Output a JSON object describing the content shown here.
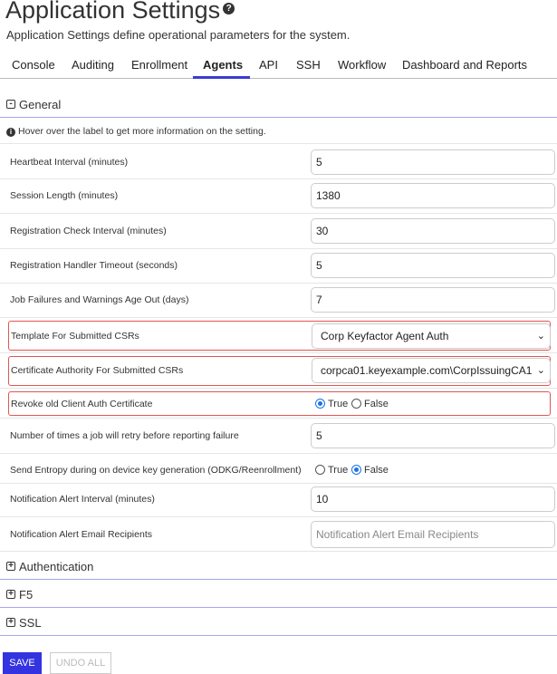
{
  "header": {
    "title": "Application Settings",
    "help_icon": "question-circle-icon",
    "subtitle": "Application Settings define operational parameters for the system."
  },
  "tabs": [
    {
      "label": "Console"
    },
    {
      "label": "Auditing"
    },
    {
      "label": "Enrollment"
    },
    {
      "label": "Agents",
      "active": true
    },
    {
      "label": "API"
    },
    {
      "label": "SSH"
    },
    {
      "label": "Workflow"
    },
    {
      "label": "Dashboard and Reports"
    }
  ],
  "general": {
    "title": "General",
    "toggle": "-",
    "info": "Hover over the label to get more information on the setting.",
    "settings": {
      "heartbeat": {
        "label": "Heartbeat Interval (minutes)",
        "value": "5"
      },
      "session": {
        "label": "Session Length (minutes)",
        "value": "1380"
      },
      "regcheck": {
        "label": "Registration Check Interval (minutes)",
        "value": "30"
      },
      "reghandler": {
        "label": "Registration Handler Timeout (seconds)",
        "value": "5"
      },
      "jobfail": {
        "label": "Job Failures and Warnings Age Out (days)",
        "value": "7"
      },
      "template": {
        "label": "Template For Submitted CSRs",
        "value": "Corp Keyfactor Agent Auth"
      },
      "ca": {
        "label": "Certificate Authority For Submitted CSRs",
        "value": "corpca01.keyexample.com\\CorpIssuingCA1"
      },
      "revoke": {
        "label": "Revoke old Client Auth Certificate",
        "true_label": "True",
        "false_label": "False",
        "value": "True"
      },
      "retries": {
        "label": "Number of times a job will retry before reporting failure",
        "value": "5"
      },
      "entropy": {
        "label": "Send Entropy during on device key generation (ODKG/Reenrollment)",
        "true_label": "True",
        "false_label": "False",
        "value": "False"
      },
      "notif_interval": {
        "label": "Notification Alert Interval (minutes)",
        "value": "10"
      },
      "notif_recipients": {
        "label": "Notification Alert Email Recipients",
        "value": "",
        "placeholder": "Notification Alert Email Recipients"
      }
    }
  },
  "sections": [
    {
      "title": "Authentication",
      "toggle": "+"
    },
    {
      "title": "F5",
      "toggle": "+"
    },
    {
      "title": "SSL",
      "toggle": "+"
    }
  ],
  "actions": {
    "save": "SAVE",
    "undo": "UNDO ALL"
  },
  "colors": {
    "accent": "#3333e0",
    "highlight": "#e05555"
  }
}
